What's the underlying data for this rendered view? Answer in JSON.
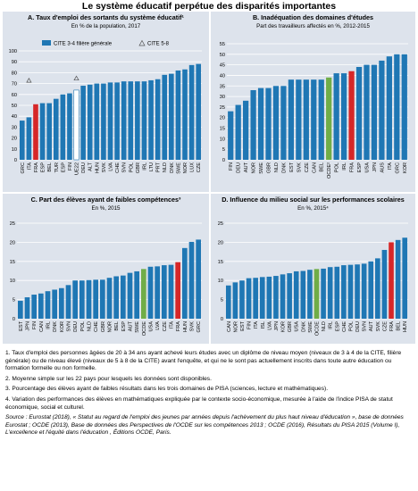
{
  "page_title": "Le système éducatif perpétue des disparités importantes",
  "colors": {
    "bar": "#1f77b4",
    "highlight": "#d62728",
    "avg": "#70ad47",
    "grid": "#ffffff",
    "panel_bg": "#dde3ec"
  },
  "chart_data": [
    {
      "id": "A",
      "type": "bar",
      "title": "A. Taux d'emploi des sortants du système éducatif¹",
      "subtitle": "En % de la population, 2017",
      "legend": [
        "CITE 3-4 filière générale",
        "CITE 5-8"
      ],
      "legend_placement": "top",
      "categories": [
        "GRC",
        "ITA",
        "FRA",
        "ESP",
        "BEL",
        "TUR",
        "ESP",
        "FIN",
        "UE22",
        "DEU",
        "ALT",
        "HUN",
        "SVK",
        "LVA",
        "CHE",
        "SVN",
        "POL",
        "GBR",
        "IRL",
        "LTU",
        "PRT",
        "NLD",
        "DNK",
        "SWE",
        "NOR",
        "LUX",
        "CZE"
      ],
      "values": [
        36,
        39,
        51,
        52,
        52,
        56,
        60,
        61,
        64,
        68,
        69,
        70,
        70,
        71,
        71,
        72,
        72,
        72,
        72,
        73,
        74,
        78,
        79,
        82,
        83,
        87,
        88
      ],
      "cite58": [
        {
          "index": 1,
          "value": 73
        },
        {
          "index": 8,
          "value": 75
        }
      ],
      "highlight": [
        2
      ],
      "average": [
        8
      ],
      "ylim": [
        0,
        100
      ],
      "yticks": [
        0,
        10,
        20,
        30,
        40,
        50,
        60,
        70,
        80,
        90,
        100
      ]
    },
    {
      "id": "B",
      "type": "bar",
      "title": "B. Inadéquation des domaines d'études",
      "subtitle": "Part des travailleurs affectés en %, 2012-2015",
      "categories": [
        "FIN",
        "DEU",
        "AUT",
        "NOR",
        "SWE",
        "GBR",
        "NLD",
        "DNK",
        "EST",
        "SVK",
        "CZE",
        "CAN",
        "BEL",
        "OCDE²",
        "POL",
        "IRL",
        "FRA",
        "ESP",
        "USA",
        "JPN",
        "AUS",
        "ITA",
        "GRC",
        "KOR"
      ],
      "values": [
        23,
        26,
        28,
        33,
        34,
        34,
        35,
        35,
        38,
        38,
        38,
        38,
        38,
        39,
        41,
        41,
        42,
        44,
        45,
        45,
        47,
        49,
        50,
        50
      ],
      "highlight": [
        16
      ],
      "average": [
        13
      ],
      "ylim": [
        0,
        55
      ],
      "yticks": [
        0,
        5,
        10,
        15,
        20,
        25,
        30,
        35,
        40,
        45,
        50,
        55
      ]
    },
    {
      "id": "C",
      "type": "bar",
      "title": "C. Part des élèves ayant de faibles compétences³",
      "subtitle": "En %, 2015",
      "categories": [
        "EST",
        "JPN",
        "FIN",
        "CAN",
        "IRL",
        "DNK",
        "KOR",
        "SVN",
        "DEU",
        "POL",
        "NLD",
        "CHE",
        "GBR",
        "NOR",
        "BEL",
        "ESP",
        "AUT",
        "SWE",
        "OCDE",
        "USA",
        "LVA",
        "CZE",
        "ITA",
        "FRA",
        "HUN",
        "SVK",
        "GRC"
      ],
      "values": [
        4.7,
        5.6,
        6.3,
        6.6,
        7.2,
        7.6,
        8.0,
        8.8,
        10.0,
        10.0,
        10.1,
        10.2,
        10.2,
        10.7,
        11.1,
        11.3,
        12.0,
        12.4,
        13.0,
        13.6,
        13.7,
        14.0,
        14.1,
        14.8,
        18.5,
        20.1,
        20.7
      ],
      "highlight": [
        23
      ],
      "average": [
        18
      ],
      "ylim": [
        0,
        25
      ],
      "yticks": [
        0,
        5,
        10,
        15,
        20,
        25
      ]
    },
    {
      "id": "D",
      "type": "bar",
      "title": "D. Influence du milieu social sur les performances scolaires",
      "subtitle": "En %, 2015⁴",
      "categories": [
        "CAN",
        "NOR",
        "EST",
        "FIN",
        "ITA",
        "ISL",
        "LVA",
        "JPN",
        "KOR",
        "GBR",
        "USA",
        "DNK",
        "SWE",
        "OCDE",
        "NLD",
        "IRL",
        "ESP",
        "CHE",
        "POL",
        "DEU",
        "SVN",
        "AUT",
        "SVK",
        "CZE",
        "FRA",
        "BEL",
        "HUN"
      ],
      "values": [
        8.7,
        9.5,
        10.0,
        10.6,
        10.7,
        10.9,
        11.0,
        11.2,
        11.6,
        11.9,
        12.4,
        12.5,
        12.8,
        13.0,
        13.1,
        13.5,
        13.6,
        14.0,
        14.1,
        14.2,
        14.4,
        15.0,
        15.8,
        18.0,
        20.0,
        20.6,
        21.2
      ],
      "highlight": [
        24
      ],
      "average": [
        13
      ],
      "ylim": [
        0,
        25
      ],
      "yticks": [
        0,
        5,
        10,
        15,
        20,
        25
      ]
    }
  ],
  "notes": [
    "1. Taux d'emploi des personnes âgées de 20 à 34 ans ayant achevé leurs études avec un diplôme de niveau moyen (niveaux de 3 à 4 de la CITE, filière générale) ou de niveau élevé (niveaux de 5 à 8 de la CITE) avant l'enquête, et qui ne le sont pas actuellement inscrits dans toute autre éducation ou formation formelle ou non formelle.",
    "2. Moyenne simple sur les 22 pays pour lesquels les données sont disponibles.",
    "3. Pourcentage des élèves ayant de faibles résultats dans les trois domaines de PISA (sciences, lecture et mathématiques).",
    "4. Variation des performances des élèves en mathématiques expliquée par le contexte socio-économique, mesurée à l'aide de l'indice PISA de statut économique, social et culturel."
  ],
  "source": "Source : Eurostat (2018), « Statut au regard de l'emploi des jeunes par années depuis l'achèvement du plus haut niveau d'éducation », base de données Eurostat ; OCDE (2013), Base de données des Perspectives de l'OCDE sur les compétences 2013 ; OCDE (2016), Résultats du PISA 2015 (Volume I), L'excellence et l'équité dans l'éducation , Éditions OCDE, Paris."
}
